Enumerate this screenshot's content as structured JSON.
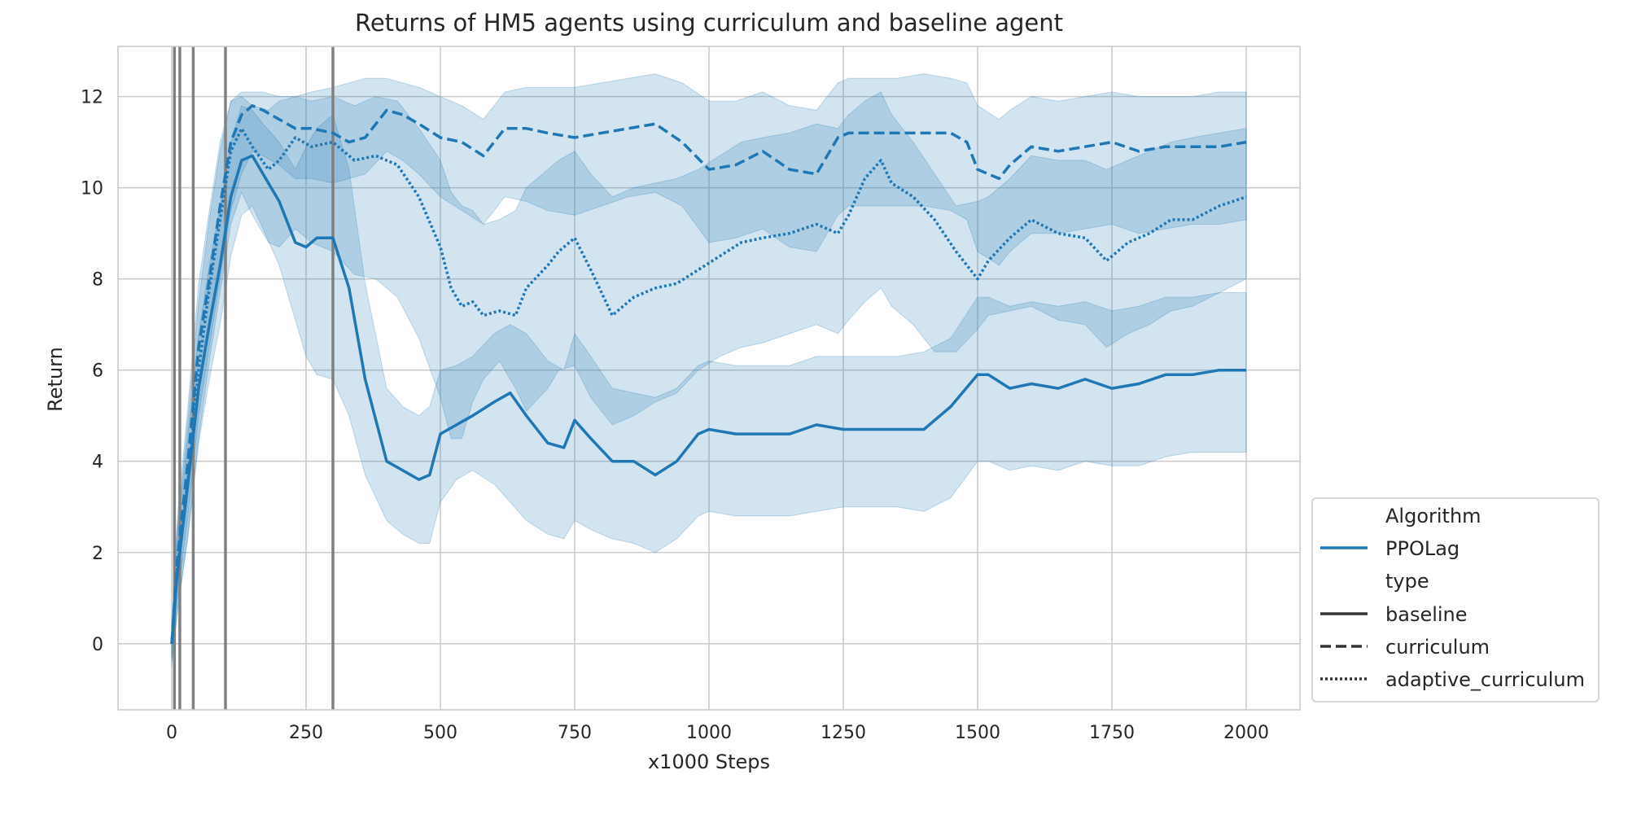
{
  "chart_data": {
    "type": "line",
    "title": "Returns of HM5 agents using curriculum and baseline agent",
    "xlabel": "x1000 Steps",
    "ylabel": "Return",
    "xlim": [
      -100,
      2100
    ],
    "ylim": [
      -1.45,
      13.1
    ],
    "x_ticks": [
      0,
      250,
      500,
      750,
      1000,
      1250,
      1500,
      1750,
      2000
    ],
    "y_ticks": [
      0,
      2,
      4,
      6,
      8,
      10,
      12
    ],
    "grid": true,
    "legend_position": "outside-lower-right",
    "vlines": [
      5,
      15,
      40,
      100,
      300
    ],
    "colors": {
      "line": "#1f77b4",
      "band": "#1f77b4",
      "vline": "#808080",
      "grid": "#cccccc",
      "spine": "#cccccc"
    },
    "legend": {
      "groups": [
        {
          "title": "Algorithm",
          "entries": [
            {
              "label": "PPOLag",
              "style": "solid",
              "color": "#1f77b4"
            }
          ]
        },
        {
          "title": "type",
          "entries": [
            {
              "label": "baseline",
              "style": "solid",
              "color": "#333333"
            },
            {
              "label": "curriculum",
              "style": "dashed",
              "color": "#333333"
            },
            {
              "label": "adaptive_curriculum",
              "style": "dotted",
              "color": "#333333"
            }
          ]
        }
      ]
    },
    "series": [
      {
        "name": "baseline",
        "style": "solid",
        "x": [
          0,
          10,
          30,
          50,
          70,
          90,
          110,
          130,
          150,
          170,
          200,
          230,
          250,
          270,
          300,
          330,
          360,
          400,
          430,
          460,
          480,
          500,
          530,
          560,
          600,
          630,
          660,
          700,
          730,
          750,
          780,
          820,
          860,
          900,
          940,
          980,
          1000,
          1050,
          1100,
          1150,
          1200,
          1250,
          1300,
          1350,
          1400,
          1450,
          1500,
          1520,
          1560,
          1600,
          1650,
          1700,
          1750,
          1800,
          1850,
          1900,
          1950,
          2000
        ],
        "y": [
          0,
          1.5,
          3.5,
          5.6,
          7.0,
          8.3,
          9.8,
          10.6,
          10.7,
          10.3,
          9.7,
          8.8,
          8.7,
          8.9,
          8.9,
          7.8,
          5.8,
          4.0,
          3.8,
          3.6,
          3.7,
          4.6,
          4.8,
          5.0,
          5.3,
          5.5,
          5.0,
          4.4,
          4.3,
          4.9,
          4.5,
          4.0,
          4.0,
          3.7,
          4.0,
          4.6,
          4.7,
          4.6,
          4.6,
          4.6,
          4.8,
          4.7,
          4.7,
          4.7,
          4.7,
          5.2,
          5.9,
          5.9,
          5.6,
          5.7,
          5.6,
          5.8,
          5.6,
          5.7,
          5.9,
          5.9,
          6.0,
          6.0
        ],
        "lower": [
          -0.4,
          0.6,
          2.4,
          4.4,
          5.8,
          7.0,
          8.5,
          9.4,
          9.6,
          9.1,
          8.3,
          7.1,
          6.3,
          5.9,
          5.8,
          5.0,
          3.7,
          2.7,
          2.4,
          2.2,
          2.2,
          3.1,
          3.6,
          3.8,
          3.5,
          3.1,
          2.7,
          2.4,
          2.3,
          2.7,
          2.5,
          2.3,
          2.2,
          2.0,
          2.3,
          2.8,
          2.9,
          2.8,
          2.8,
          2.8,
          2.9,
          3.0,
          3.0,
          3.0,
          2.9,
          3.2,
          4.0,
          4.0,
          3.8,
          3.9,
          3.8,
          4.0,
          3.9,
          3.9,
          4.1,
          4.2,
          4.2,
          4.2
        ],
        "upper": [
          0.3,
          2.4,
          4.6,
          6.8,
          8.3,
          9.6,
          11.0,
          11.8,
          11.7,
          11.4,
          11.0,
          10.4,
          10.9,
          11.3,
          11.6,
          10.4,
          7.9,
          5.6,
          5.2,
          5.0,
          5.2,
          6.0,
          6.1,
          6.3,
          6.8,
          7.0,
          6.8,
          6.2,
          6.0,
          6.8,
          6.3,
          5.6,
          5.5,
          5.4,
          5.6,
          6.1,
          6.2,
          6.1,
          6.1,
          6.1,
          6.3,
          6.3,
          6.3,
          6.3,
          6.4,
          6.7,
          7.6,
          7.6,
          7.4,
          7.5,
          7.4,
          7.5,
          7.3,
          7.4,
          7.6,
          7.6,
          7.7,
          7.7
        ]
      },
      {
        "name": "curriculum",
        "style": "dashed",
        "x": [
          0,
          10,
          30,
          50,
          70,
          90,
          110,
          130,
          150,
          170,
          200,
          230,
          260,
          300,
          330,
          360,
          400,
          430,
          460,
          500,
          540,
          580,
          620,
          660,
          700,
          750,
          800,
          850,
          900,
          950,
          1000,
          1050,
          1100,
          1150,
          1200,
          1240,
          1260,
          1300,
          1350,
          1400,
          1450,
          1480,
          1500,
          1540,
          1560,
          1600,
          1650,
          1700,
          1750,
          1800,
          1850,
          1900,
          1950,
          2000
        ],
        "y": [
          0,
          1.8,
          4.0,
          6.5,
          8.0,
          9.6,
          11.0,
          11.6,
          11.8,
          11.7,
          11.5,
          11.3,
          11.3,
          11.2,
          11.0,
          11.1,
          11.7,
          11.6,
          11.4,
          11.1,
          11.0,
          10.7,
          11.3,
          11.3,
          11.2,
          11.1,
          11.2,
          11.3,
          11.4,
          11.0,
          10.4,
          10.5,
          10.8,
          10.4,
          10.3,
          11.1,
          11.2,
          11.2,
          11.2,
          11.2,
          11.2,
          11.0,
          10.4,
          10.2,
          10.5,
          10.9,
          10.8,
          10.9,
          11.0,
          10.8,
          10.9,
          10.9,
          10.9,
          11.0
        ],
        "lower": [
          -0.3,
          0.9,
          2.8,
          5.0,
          6.5,
          8.0,
          9.5,
          10.3,
          10.8,
          10.7,
          10.5,
          10.2,
          10.2,
          10.1,
          10.2,
          10.3,
          10.8,
          10.6,
          10.3,
          9.8,
          9.5,
          9.2,
          9.8,
          9.7,
          9.5,
          9.4,
          9.6,
          9.8,
          9.9,
          9.6,
          8.8,
          8.9,
          9.1,
          8.7,
          8.6,
          9.4,
          9.6,
          9.6,
          9.6,
          9.6,
          9.5,
          9.3,
          8.6,
          8.3,
          8.6,
          9.0,
          9.0,
          9.1,
          9.2,
          9.0,
          9.1,
          9.2,
          9.2,
          9.3
        ],
        "upper": [
          0.3,
          2.7,
          5.2,
          7.9,
          9.5,
          11.0,
          11.9,
          12.1,
          12.1,
          12.1,
          12.0,
          12.0,
          12.1,
          12.2,
          12.3,
          12.4,
          12.4,
          12.3,
          12.2,
          12.0,
          11.8,
          11.5,
          12.1,
          12.2,
          12.2,
          12.2,
          12.3,
          12.4,
          12.5,
          12.3,
          11.9,
          11.9,
          12.1,
          11.8,
          11.7,
          12.3,
          12.4,
          12.4,
          12.4,
          12.5,
          12.4,
          12.3,
          11.8,
          11.5,
          11.7,
          12.0,
          11.9,
          12.0,
          12.1,
          12.0,
          12.0,
          12.0,
          12.1,
          12.1
        ]
      },
      {
        "name": "adaptive_curriculum",
        "style": "dotted",
        "x": [
          0,
          10,
          30,
          50,
          70,
          90,
          110,
          130,
          150,
          180,
          200,
          230,
          260,
          300,
          340,
          380,
          420,
          460,
          500,
          520,
          540,
          560,
          580,
          610,
          640,
          660,
          700,
          720,
          750,
          780,
          820,
          860,
          900,
          940,
          980,
          1020,
          1060,
          1100,
          1150,
          1200,
          1240,
          1260,
          1290,
          1320,
          1340,
          1380,
          1420,
          1460,
          1500,
          1520,
          1560,
          1600,
          1650,
          1700,
          1740,
          1780,
          1820,
          1860,
          1900,
          1950,
          2000
        ],
        "y": [
          0,
          1.6,
          3.6,
          6.0,
          7.8,
          9.3,
          10.8,
          11.3,
          10.9,
          10.4,
          10.6,
          11.1,
          10.9,
          11.0,
          10.6,
          10.7,
          10.5,
          9.8,
          8.7,
          7.8,
          7.4,
          7.5,
          7.2,
          7.3,
          7.2,
          7.8,
          8.3,
          8.6,
          8.9,
          8.2,
          7.2,
          7.6,
          7.8,
          7.9,
          8.2,
          8.5,
          8.8,
          8.9,
          9.0,
          9.2,
          9.0,
          9.4,
          10.2,
          10.6,
          10.1,
          9.8,
          9.3,
          8.6,
          8.0,
          8.4,
          8.9,
          9.3,
          9.0,
          8.9,
          8.4,
          8.8,
          9.0,
          9.3,
          9.3,
          9.6,
          9.8
        ],
        "lower": [
          -0.5,
          0.7,
          2.3,
          4.5,
          6.2,
          7.7,
          9.2,
          9.9,
          9.4,
          8.8,
          8.7,
          9.1,
          8.8,
          8.6,
          8.1,
          8.0,
          7.6,
          6.7,
          5.4,
          4.5,
          4.5,
          5.3,
          5.8,
          6.2,
          5.6,
          5.1,
          5.6,
          6.0,
          6.1,
          5.4,
          4.8,
          5.0,
          5.3,
          5.5,
          6.0,
          6.3,
          6.5,
          6.6,
          6.8,
          7.0,
          6.8,
          7.1,
          7.5,
          7.8,
          7.4,
          7.0,
          6.4,
          6.4,
          6.9,
          7.2,
          7.3,
          7.4,
          7.1,
          7.0,
          6.5,
          6.8,
          7.0,
          7.3,
          7.4,
          7.7,
          8.0
        ],
        "upper": [
          0.4,
          2.5,
          4.9,
          7.5,
          9.3,
          10.8,
          11.9,
          12.0,
          11.8,
          11.7,
          11.9,
          12.0,
          11.9,
          12.0,
          11.8,
          12.0,
          11.9,
          11.3,
          10.6,
          9.9,
          9.6,
          9.5,
          9.2,
          9.3,
          9.5,
          10.0,
          10.4,
          10.6,
          10.8,
          10.3,
          9.8,
          10.0,
          10.1,
          10.2,
          10.4,
          10.7,
          11.0,
          11.1,
          11.2,
          11.4,
          11.3,
          11.6,
          11.9,
          12.1,
          11.6,
          11.0,
          10.3,
          9.6,
          9.7,
          9.8,
          10.2,
          10.7,
          10.6,
          10.6,
          10.4,
          10.6,
          10.8,
          11.0,
          11.1,
          11.2,
          11.3
        ]
      }
    ]
  }
}
